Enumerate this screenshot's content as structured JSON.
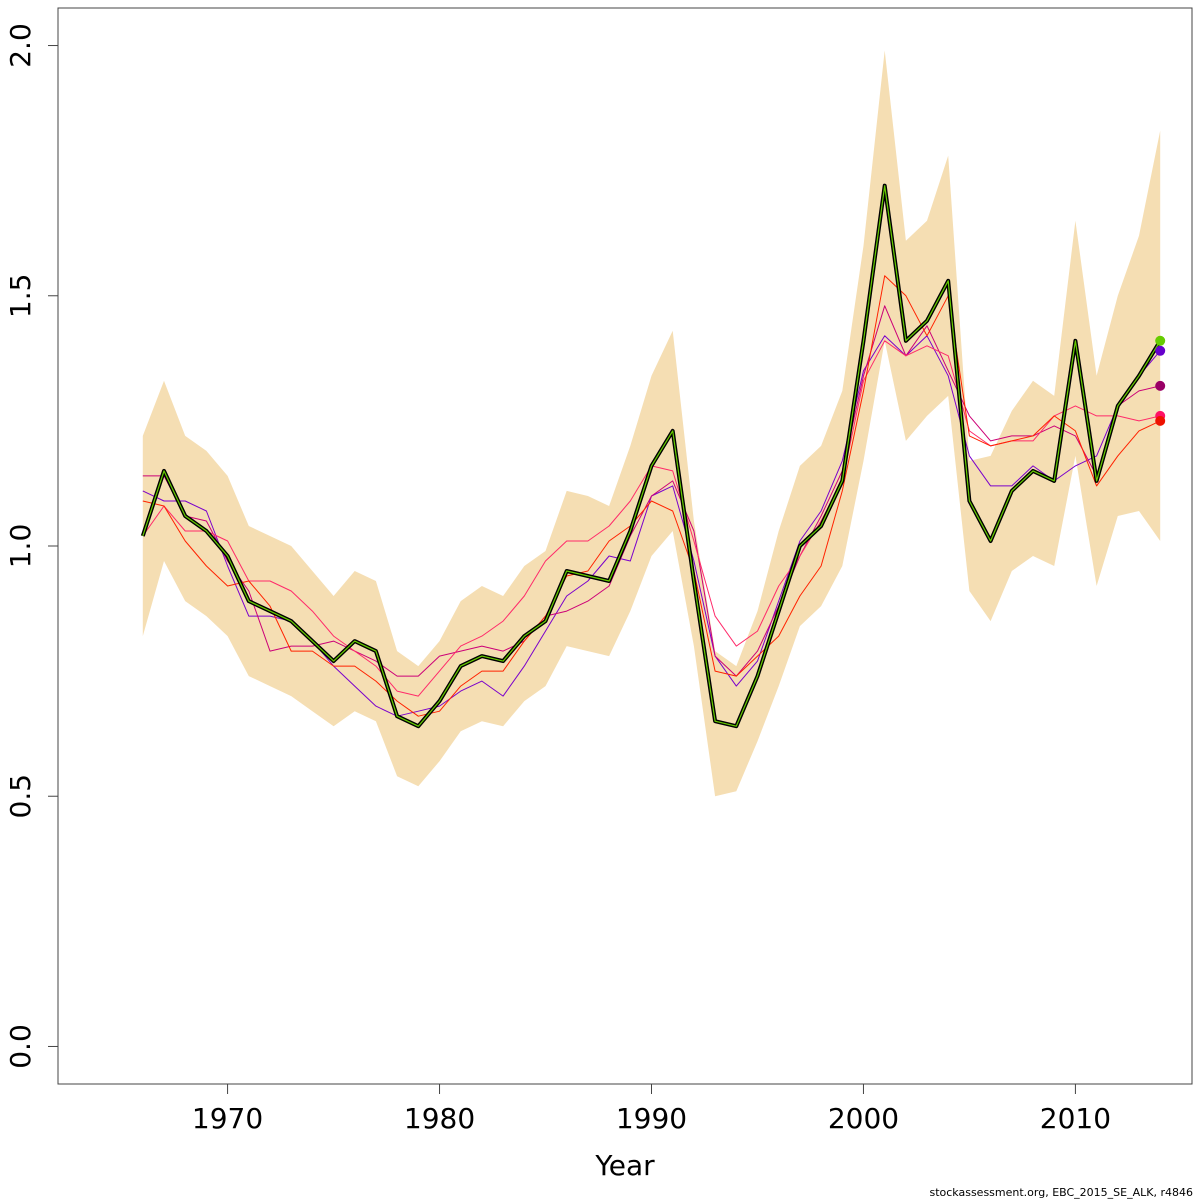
{
  "chart_data": {
    "type": "line",
    "xlabel": "Year",
    "ylabel": "",
    "xlim": [
      1962,
      2015.5
    ],
    "ylim": [
      -0.075,
      2.075
    ],
    "xticks": [
      1970,
      1980,
      1990,
      2000,
      2010
    ],
    "yticks": [
      0.0,
      0.5,
      1.0,
      1.5,
      2.0
    ],
    "ytick_labels": [
      "0.0",
      "0.5",
      "1.0",
      "1.5",
      "2.0"
    ],
    "grid": false,
    "legend": "none",
    "years": [
      1966,
      1967,
      1968,
      1969,
      1970,
      1971,
      1972,
      1973,
      1974,
      1975,
      1976,
      1977,
      1978,
      1979,
      1980,
      1981,
      1982,
      1983,
      1984,
      1985,
      1986,
      1987,
      1988,
      1989,
      1990,
      1991,
      1992,
      1993,
      1994,
      1995,
      1996,
      1997,
      1998,
      1999,
      2000,
      2001,
      2002,
      2003,
      2004,
      2005,
      2006,
      2007,
      2008,
      2009,
      2010,
      2011,
      2012,
      2013,
      2014
    ],
    "band": {
      "color": "#f5deb3",
      "upper": [
        1.22,
        1.33,
        1.22,
        1.19,
        1.14,
        1.04,
        1.02,
        1.0,
        0.95,
        0.9,
        0.95,
        0.93,
        0.79,
        0.76,
        0.81,
        0.89,
        0.92,
        0.9,
        0.96,
        0.99,
        1.11,
        1.1,
        1.08,
        1.2,
        1.34,
        1.43,
        1.05,
        0.79,
        0.76,
        0.87,
        1.03,
        1.16,
        1.2,
        1.31,
        1.6,
        1.99,
        1.61,
        1.65,
        1.78,
        1.17,
        1.18,
        1.27,
        1.33,
        1.3,
        1.65,
        1.34,
        1.5,
        1.62,
        1.83
      ],
      "lower": [
        0.82,
        0.97,
        0.89,
        0.86,
        0.82,
        0.74,
        0.72,
        0.7,
        0.67,
        0.64,
        0.67,
        0.65,
        0.54,
        0.52,
        0.57,
        0.63,
        0.65,
        0.64,
        0.69,
        0.72,
        0.8,
        0.79,
        0.78,
        0.87,
        0.98,
        1.03,
        0.8,
        0.5,
        0.51,
        0.61,
        0.72,
        0.84,
        0.88,
        0.96,
        1.17,
        1.41,
        1.21,
        1.26,
        1.3,
        0.91,
        0.85,
        0.95,
        0.98,
        0.96,
        1.18,
        0.92,
        1.06,
        1.07,
        1.01
      ]
    },
    "series": [
      {
        "color": "#1a4a00",
        "values": [
          1.02,
          1.15,
          1.06,
          1.03,
          0.98,
          0.89,
          0.87,
          0.85,
          0.81,
          0.77,
          0.81,
          0.79,
          0.66,
          0.64,
          0.69,
          0.76,
          0.78,
          0.77,
          0.82,
          0.85,
          0.95,
          0.94,
          0.93,
          1.03,
          1.16,
          1.23,
          0.93,
          0.65,
          0.64,
          0.74,
          0.87,
          1.0,
          1.04,
          1.13,
          1.41,
          1.72,
          1.41,
          1.45,
          1.53,
          1.09,
          1.01,
          1.11,
          1.15,
          1.13,
          1.41,
          1.13,
          1.28,
          1.34,
          1.41
        ],
        "end_point_color": "#66cc00"
      },
      {
        "color": "#7a00cc",
        "values": [
          1.11,
          1.09,
          1.09,
          1.07,
          0.96,
          0.86,
          0.86,
          0.85,
          0.81,
          0.76,
          0.72,
          0.68,
          0.66,
          0.67,
          0.68,
          0.71,
          0.73,
          0.7,
          0.76,
          0.83,
          0.9,
          0.93,
          0.98,
          0.97,
          1.1,
          1.12,
          0.97,
          0.78,
          0.72,
          0.77,
          0.89,
          1.01,
          1.07,
          1.17,
          1.35,
          1.42,
          1.38,
          1.42,
          1.34,
          1.18,
          1.12,
          1.12,
          1.16,
          1.13,
          1.16,
          1.18,
          1.28,
          1.34,
          1.39
        ],
        "end_point_color": "#6600cc"
      },
      {
        "color": "#cc0077",
        "values": [
          1.14,
          1.14,
          1.06,
          1.05,
          0.97,
          0.91,
          0.79,
          0.8,
          0.8,
          0.81,
          0.79,
          0.77,
          0.74,
          0.74,
          0.78,
          0.79,
          0.8,
          0.79,
          0.81,
          0.86,
          0.87,
          0.89,
          0.92,
          1.02,
          1.1,
          1.13,
          1.03,
          0.78,
          0.74,
          0.79,
          0.88,
          0.98,
          1.06,
          1.15,
          1.34,
          1.48,
          1.38,
          1.44,
          1.35,
          1.26,
          1.21,
          1.22,
          1.22,
          1.24,
          1.22,
          1.14,
          1.28,
          1.31,
          1.32
        ],
        "end_point_color": "#990066"
      },
      {
        "color": "#ff2a6a",
        "values": [
          1.02,
          1.08,
          1.03,
          1.03,
          1.01,
          0.93,
          0.93,
          0.91,
          0.87,
          0.82,
          0.79,
          0.76,
          0.71,
          0.7,
          0.75,
          0.8,
          0.82,
          0.85,
          0.9,
          0.97,
          1.01,
          1.01,
          1.04,
          1.09,
          1.16,
          1.15,
          1.01,
          0.86,
          0.8,
          0.83,
          0.92,
          0.98,
          1.05,
          1.13,
          1.33,
          1.41,
          1.38,
          1.4,
          1.38,
          1.23,
          1.2,
          1.21,
          1.21,
          1.26,
          1.28,
          1.26,
          1.26,
          1.25,
          1.26
        ],
        "end_point_color": "#ff1166"
      },
      {
        "color": "#ff2200",
        "values": [
          1.09,
          1.08,
          1.01,
          0.96,
          0.92,
          0.93,
          0.88,
          0.79,
          0.79,
          0.76,
          0.76,
          0.73,
          0.69,
          0.66,
          0.67,
          0.72,
          0.75,
          0.75,
          0.81,
          0.86,
          0.94,
          0.95,
          1.01,
          1.04,
          1.09,
          1.07,
          0.95,
          0.75,
          0.74,
          0.78,
          0.82,
          0.9,
          0.96,
          1.11,
          1.31,
          1.54,
          1.5,
          1.42,
          1.5,
          1.22,
          1.2,
          1.21,
          1.22,
          1.26,
          1.23,
          1.12,
          1.18,
          1.23,
          1.25
        ],
        "end_point_color": "#ee1100"
      }
    ]
  },
  "credit_text": "stockassessment.org, EBC_2015_SE_ALK, r4846"
}
